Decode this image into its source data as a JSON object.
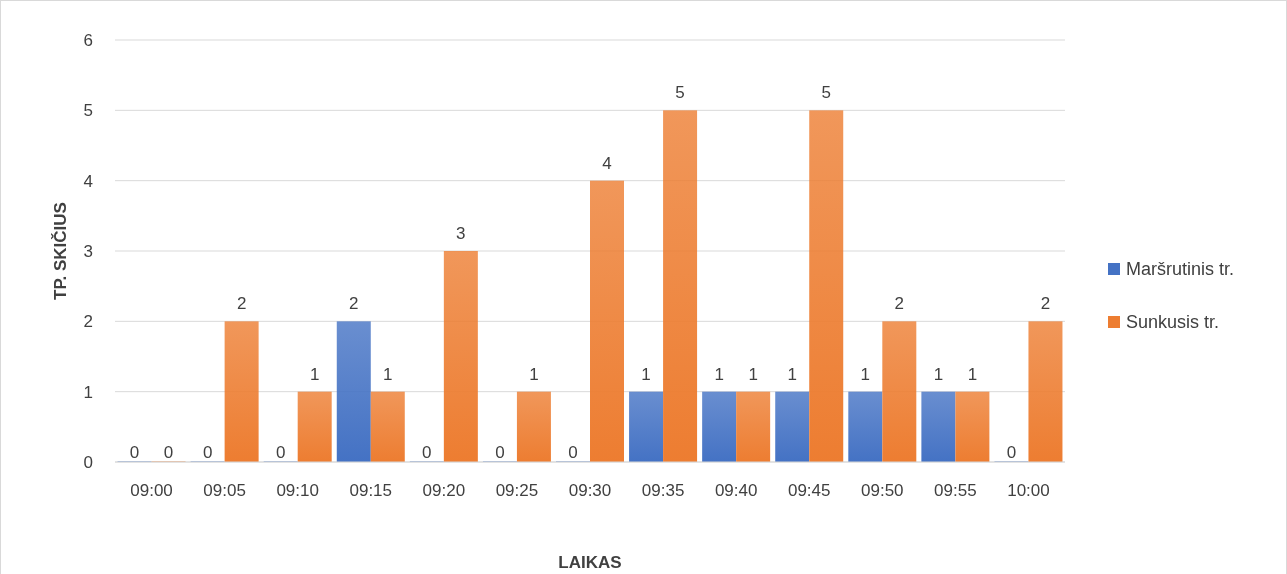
{
  "chart_data": {
    "type": "bar",
    "xlabel": "LAIKAS",
    "ylabel": "TP. SKIČIUS",
    "categories": [
      "09:00",
      "09:05",
      "09:10",
      "09:15",
      "09:20",
      "09:25",
      "09:30",
      "09:35",
      "09:40",
      "09:45",
      "09:50",
      "09:55",
      "10:00"
    ],
    "series": [
      {
        "name": "Maršrutinis tr.",
        "color": "#4472c4",
        "values": [
          0,
          0,
          0,
          2,
          0,
          0,
          0,
          1,
          1,
          1,
          1,
          1,
          0
        ]
      },
      {
        "name": "Sunkusis tr.",
        "color": "#ed7d31",
        "values": [
          0,
          2,
          1,
          1,
          3,
          1,
          4,
          5,
          1,
          5,
          2,
          1,
          2
        ]
      }
    ],
    "ylim": [
      0,
      6
    ],
    "yticks": [
      0,
      1,
      2,
      3,
      4,
      5,
      6
    ],
    "grid": "y",
    "legend": "right",
    "data_labels": true
  }
}
